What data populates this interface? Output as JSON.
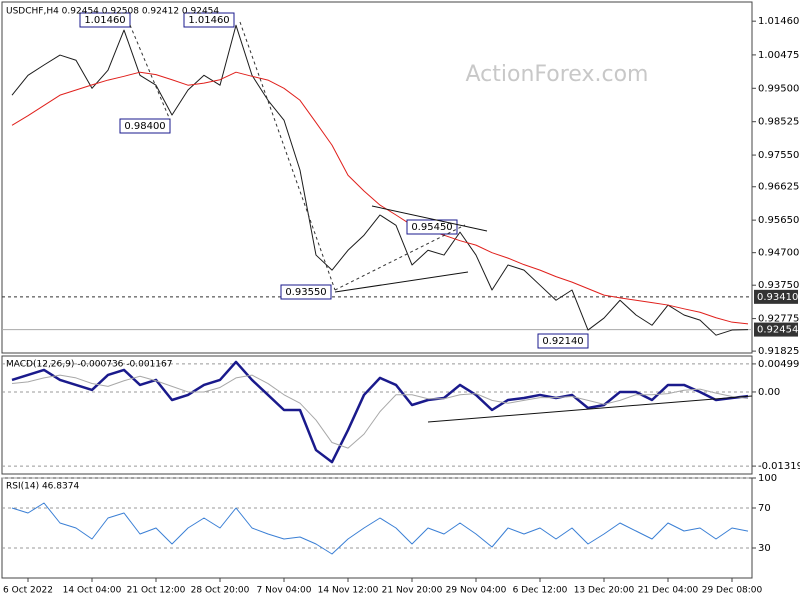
{
  "chart_data": [
    {
      "type": "line",
      "title": "USDCHF,H4 0.92454 0.92508 0.92412 0.92454",
      "watermark": "ActionForex.com",
      "categories": [
        null,
        "6 Oct 2022",
        null,
        null,
        null,
        "14 Oct 04:00",
        null,
        null,
        null,
        "21 Oct 12:00",
        null,
        null,
        null,
        "28 Oct 20:00",
        null,
        null,
        null,
        "7 Nov 04:00",
        null,
        null,
        null,
        "14 Nov 12:00",
        null,
        null,
        null,
        "21 Nov 20:00",
        null,
        null,
        null,
        "29 Nov 04:00",
        null,
        null,
        null,
        "6 Dec 12:00",
        null,
        null,
        null,
        "13 Dec 20:00",
        null,
        null,
        null,
        "21 Dec 04:00",
        null,
        null,
        null,
        "29 Dec 08:00",
        null
      ],
      "series": [
        {
          "name": "USDCHF",
          "color": "#1c1c1c",
          "width": 1,
          "values": [
            0.993,
            0.9988,
            1.0018,
            1.0047,
            1.0032,
            0.995,
            1.0003,
            1.012,
            0.9988,
            0.9959,
            0.9872,
            0.9945,
            0.9988,
            0.9959,
            1.0134,
            0.9988,
            0.9915,
            0.9857,
            0.9711,
            0.9463,
            0.9419,
            0.9477,
            0.9521,
            0.958,
            0.955,
            0.9434,
            0.9477,
            0.9463,
            0.953,
            0.9463,
            0.9361,
            0.9434,
            0.9419,
            0.9375,
            0.9331,
            0.9361,
            0.9244,
            0.9279,
            0.9331,
            0.9288,
            0.9258,
            0.9317,
            0.9288,
            0.9273,
            0.9229,
            0.9244,
            0.92454
          ]
        },
        {
          "name": "MA",
          "color": "#e0201c",
          "width": 1,
          "values": [
            0.9842,
            0.987,
            0.99,
            0.993,
            0.9945,
            0.996,
            0.9974,
            0.9985,
            0.9997,
            0.999,
            0.9975,
            0.9959,
            0.9965,
            0.9975,
            0.9997,
            0.9985,
            0.9974,
            0.995,
            0.9915,
            0.985,
            0.9784,
            0.9696,
            0.965,
            0.9609,
            0.958,
            0.955,
            0.9535,
            0.9521,
            0.9505,
            0.9492,
            0.947,
            0.9454,
            0.9435,
            0.9419,
            0.94,
            0.9384,
            0.9365,
            0.9346,
            0.9338,
            0.9331,
            0.9324,
            0.9317,
            0.9306,
            0.9296,
            0.928,
            0.9267,
            0.9262
          ]
        }
      ],
      "ylim": [
        0.9177,
        1.0202
      ],
      "yticks": [
        {
          "value": 1.0146,
          "label": "1.01460"
        },
        1.00475,
        {
          "value": 0.995,
          "label": "0.99500"
        },
        0.98525,
        {
          "value": 0.9755,
          "label": "0.97550"
        },
        0.96625,
        {
          "value": 0.9565,
          "label": "0.95650"
        },
        {
          "value": 0.947,
          "label": "0.94700"
        },
        {
          "value": 0.9375,
          "label": "0.93750"
        },
        0.92775,
        0.91825
      ],
      "levels": [
        {
          "value": 0.9341,
          "label": "0.93410",
          "style": "dashed"
        },
        {
          "value": 0.92454,
          "label": "0.92454",
          "style": "solid"
        }
      ],
      "annotations": [
        "1.01460",
        "0.98400",
        "1.01460",
        "0.93550",
        "0.95450",
        "0.92140"
      ]
    },
    {
      "type": "line",
      "title": "MACD(12,26,9) -0.000736 -0.001167",
      "series": [
        {
          "name": "MACD",
          "color": "#1a1a8c",
          "width": 2.5,
          "values": [
            0.00214,
            0.00303,
            0.00392,
            0.00214,
            0.00125,
            0.00036,
            0.00303,
            0.00392,
            0.00125,
            0.00214,
            -0.00143,
            -0.00053,
            0.00125,
            0.00214,
            0.00535,
            0.00214,
            -0.00053,
            -0.00321,
            -0.00321,
            -0.01034,
            -0.01248,
            -0.00678,
            -0.00053,
            0.0025,
            0.00125,
            -0.00232,
            -0.00143,
            -0.00107,
            0.00125,
            -0.00053,
            -0.00321,
            -0.00143,
            -0.00107,
            -0.00053,
            -0.00107,
            -0.00053,
            -0.00285,
            -0.00232,
            0,
            0,
            -0.00143,
            0.00125,
            0.00125,
            0,
            -0.00143,
            -0.00107,
            -0.000736
          ]
        },
        {
          "name": "Signal",
          "color": "#a8a8a8",
          "width": 1,
          "values": [
            0.0015,
            0.0018,
            0.0025,
            0.003,
            0.0025,
            0.0015,
            0.001,
            0.002,
            0.0028,
            0.002,
            0.001,
            0.0,
            0.0,
            0.0008,
            0.0025,
            0.003,
            0.0015,
            -0.0005,
            -0.002,
            -0.005,
            -0.009,
            -0.01,
            -0.0075,
            -0.0035,
            -0.0005,
            -0.0005,
            -0.0012,
            -0.0012,
            -0.0005,
            -0.0003,
            -0.0015,
            -0.002,
            -0.0015,
            -0.001,
            -0.001,
            -0.0008,
            -0.0015,
            -0.0022,
            -0.0015,
            -0.0005,
            -0.0005,
            -0.0003,
            0.0003,
            0.0005,
            -0.0002,
            -0.0008,
            -0.001167
          ]
        }
      ],
      "ylim": [
        -0.0146,
        0.0064
      ],
      "yticks": [
        0.004993,
        {
          "value": 0,
          "label": "0.00"
        },
        -0.013193
      ]
    },
    {
      "type": "line",
      "title": "RSI(14) 46.8374",
      "series": [
        {
          "name": "RSI",
          "color": "#3a7fd5",
          "width": 1,
          "values": [
            70,
            65,
            75,
            55,
            50,
            39,
            60,
            65,
            44,
            50,
            34,
            50,
            60,
            50,
            70,
            50,
            44,
            39,
            41,
            34,
            24,
            39,
            50,
            60,
            50,
            34,
            50,
            44,
            55,
            44,
            31,
            50,
            44,
            50,
            39,
            50,
            34,
            44,
            55,
            47,
            39,
            55,
            47,
            50,
            39,
            50,
            46.8374
          ]
        }
      ],
      "ylim": [
        0,
        100
      ],
      "yticks": [
        100,
        70,
        30
      ]
    }
  ]
}
